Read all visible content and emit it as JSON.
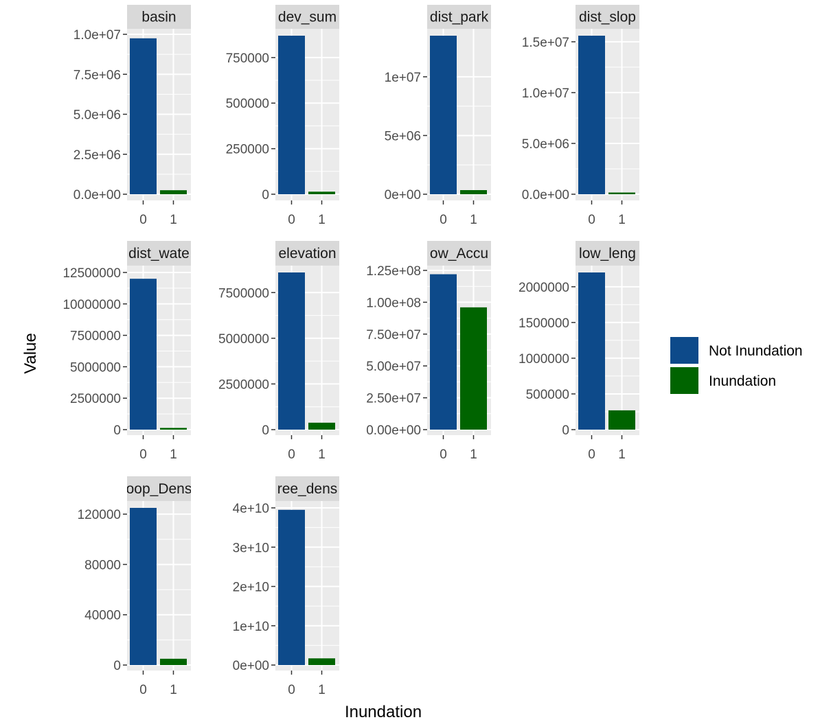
{
  "chart_data": {
    "type": "bar",
    "xlabel": "Inundation",
    "ylabel": "Value",
    "x_categories": [
      "0",
      "1"
    ],
    "legend": {
      "position": "right",
      "items": [
        {
          "label": "Not Inundation",
          "color": "#0d4a8a"
        },
        {
          "label": "Inundation",
          "color": "#006400"
        }
      ]
    },
    "panel_background": "#ebebeb",
    "strip_background": "#d9d9d9",
    "grid": true,
    "facets": [
      {
        "strip": "basin",
        "values": [
          9750000,
          250000
        ],
        "ylim": [
          0,
          10000000
        ],
        "ticks": [
          {
            "v": 0,
            "label": "0.0e+00"
          },
          {
            "v": 2500000,
            "label": "2.5e+06"
          },
          {
            "v": 5000000,
            "label": "5.0e+06"
          },
          {
            "v": 7500000,
            "label": "7.5e+06"
          },
          {
            "v": 10000000,
            "label": "1.0e+07"
          }
        ]
      },
      {
        "strip": "dev_sum",
        "values": [
          870000,
          14000
        ],
        "ylim": [
          0,
          870000
        ],
        "ticks": [
          {
            "v": 0,
            "label": "0"
          },
          {
            "v": 250000,
            "label": "250000"
          },
          {
            "v": 500000,
            "label": "500000"
          },
          {
            "v": 750000,
            "label": "750000"
          }
        ]
      },
      {
        "strip": "dist_park",
        "values": [
          13500000,
          350000
        ],
        "ylim": [
          0,
          13500000
        ],
        "ticks": [
          {
            "v": 0,
            "label": "0e+00"
          },
          {
            "v": 5000000,
            "label": "5e+06"
          },
          {
            "v": 10000000,
            "label": "1e+07"
          }
        ]
      },
      {
        "strip": "dist_slop",
        "values": [
          15600000,
          100000
        ],
        "ylim": [
          0,
          15600000
        ],
        "ticks": [
          {
            "v": 0,
            "label": "0.0e+00"
          },
          {
            "v": 5000000,
            "label": "5.0e+06"
          },
          {
            "v": 10000000,
            "label": "1.0e+07"
          },
          {
            "v": 15000000,
            "label": "1.5e+07"
          }
        ]
      },
      {
        "strip": "dist_wate",
        "values": [
          12000000,
          100000
        ],
        "ylim": [
          0,
          12500000
        ],
        "ticks": [
          {
            "v": 0,
            "label": "0"
          },
          {
            "v": 2500000,
            "label": "2500000"
          },
          {
            "v": 5000000,
            "label": "5000000"
          },
          {
            "v": 7500000,
            "label": "7500000"
          },
          {
            "v": 10000000,
            "label": "10000000"
          },
          {
            "v": 12500000,
            "label": "12500000"
          }
        ]
      },
      {
        "strip": "elevation",
        "values": [
          8600000,
          380000
        ],
        "ylim": [
          0,
          8600000
        ],
        "ticks": [
          {
            "v": 0,
            "label": "0"
          },
          {
            "v": 2500000,
            "label": "2500000"
          },
          {
            "v": 5000000,
            "label": "5000000"
          },
          {
            "v": 7500000,
            "label": "7500000"
          }
        ]
      },
      {
        "strip": "ow_Accu",
        "values": [
          122000000,
          96000000
        ],
        "ylim": [
          0,
          125000000
        ],
        "ticks": [
          {
            "v": 0,
            "label": "0.00e+00"
          },
          {
            "v": 25000000,
            "label": "2.50e+07"
          },
          {
            "v": 50000000,
            "label": "5.00e+07"
          },
          {
            "v": 75000000,
            "label": "7.50e+07"
          },
          {
            "v": 100000000,
            "label": "1.00e+08"
          },
          {
            "v": 125000000,
            "label": "1.25e+08"
          }
        ]
      },
      {
        "strip": "low_leng",
        "values": [
          2200000,
          270000
        ],
        "ylim": [
          0,
          2200000
        ],
        "ticks": [
          {
            "v": 0,
            "label": "0"
          },
          {
            "v": 500000,
            "label": "500000"
          },
          {
            "v": 1000000,
            "label": "1000000"
          },
          {
            "v": 1500000,
            "label": "1500000"
          },
          {
            "v": 2000000,
            "label": "2000000"
          }
        ]
      },
      {
        "strip": "oop_Dens",
        "values": [
          125000,
          5000
        ],
        "ylim": [
          0,
          125000
        ],
        "ticks": [
          {
            "v": 0,
            "label": "0"
          },
          {
            "v": 40000,
            "label": "40000"
          },
          {
            "v": 80000,
            "label": "80000"
          },
          {
            "v": 120000,
            "label": "120000"
          }
        ]
      },
      {
        "strip": "ree_dens",
        "values": [
          39500000000,
          1700000000
        ],
        "ylim": [
          0,
          40000000000
        ],
        "ticks": [
          {
            "v": 0,
            "label": "0e+00"
          },
          {
            "v": 10000000000,
            "label": "1e+10"
          },
          {
            "v": 20000000000,
            "label": "2e+10"
          },
          {
            "v": 30000000000,
            "label": "3e+10"
          },
          {
            "v": 40000000000,
            "label": "4e+10"
          }
        ]
      }
    ]
  }
}
